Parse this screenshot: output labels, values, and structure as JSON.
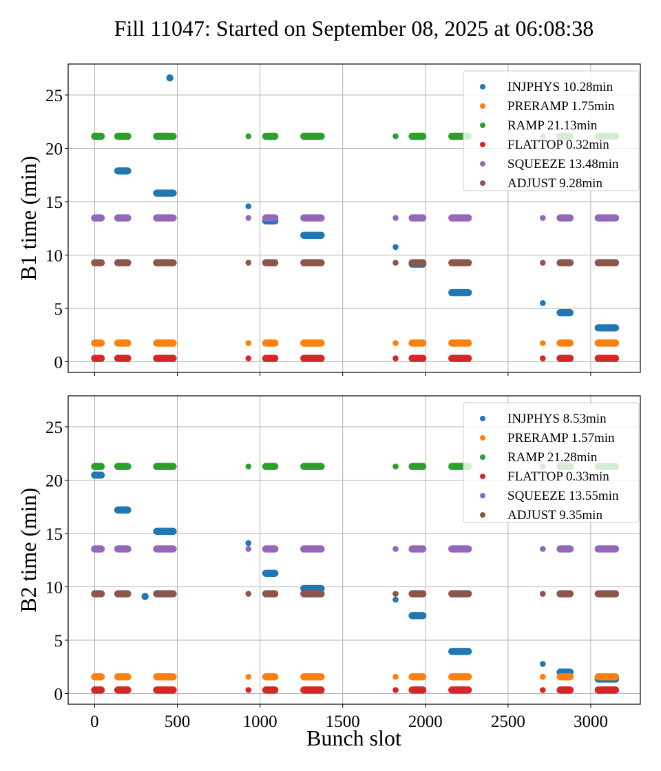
{
  "chart_data": {
    "type": "scatter",
    "title": "Fill 11047: Started on September 08, 2025 at 06:08:38",
    "xlabel": "Bunch slot",
    "xlim": [
      -160,
      3300
    ],
    "xticks": [
      0,
      500,
      1000,
      1500,
      2000,
      2500,
      3000
    ],
    "grid": true,
    "bunch_groups": [
      {
        "id": "A",
        "slots": [
          0,
          40
        ]
      },
      {
        "id": "B",
        "slots": [
          140,
          200
        ]
      },
      {
        "id": "C",
        "slots": [
          375,
          475
        ]
      },
      {
        "id": "D",
        "slots": [
          930,
          930
        ]
      },
      {
        "id": "E",
        "slots": [
          1035,
          1090
        ]
      },
      {
        "id": "F",
        "slots": [
          1265,
          1370
        ]
      },
      {
        "id": "G",
        "slots": [
          1820,
          1820
        ]
      },
      {
        "id": "H",
        "slots": [
          1920,
          1985
        ]
      },
      {
        "id": "I",
        "slots": [
          2160,
          2260
        ]
      },
      {
        "id": "J",
        "slots": [
          2710,
          2710
        ]
      },
      {
        "id": "K",
        "slots": [
          2815,
          2875
        ]
      },
      {
        "id": "L",
        "slots": [
          3045,
          3150
        ]
      }
    ],
    "panels": [
      {
        "name": "B1",
        "ylabel": "B1 time (min)",
        "ylim": [
          -1.0,
          27.9
        ],
        "yticks": [
          0,
          5,
          10,
          15,
          20,
          25
        ],
        "legend_position": "top-right",
        "series": [
          {
            "name": "INJPHYS",
            "legend": "INJPHYS 10.28min",
            "color": "#1f77b4",
            "points": [
              {
                "group": "B",
                "y": 17.88
              },
              {
                "group": "C",
                "y": 15.8
              },
              {
                "slot": 455,
                "y": 26.6
              },
              {
                "group": "D",
                "y": 14.57
              },
              {
                "group": "E",
                "y": 13.2
              },
              {
                "group": "F",
                "y": 11.85
              },
              {
                "group": "G",
                "y": 10.75
              },
              {
                "group": "H",
                "y": 9.15
              },
              {
                "group": "I",
                "y": 6.48
              },
              {
                "group": "J",
                "y": 5.5
              },
              {
                "group": "K",
                "y": 4.6
              },
              {
                "group": "L",
                "y": 3.17
              }
            ]
          },
          {
            "name": "PRERAMP",
            "legend": "PRERAMP 1.75min",
            "color": "#ff7f0e",
            "value_all_groups": 1.75
          },
          {
            "name": "RAMP",
            "legend": "RAMP 21.13min",
            "color": "#2ca02c",
            "value_all_groups": 21.13
          },
          {
            "name": "FLATTOP",
            "legend": "FLATTOP 0.32min",
            "color": "#d62728",
            "value_all_groups": 0.32
          },
          {
            "name": "SQUEEZE",
            "legend": "SQUEEZE 13.48min",
            "color": "#9467bd",
            "value_all_groups": 13.48
          },
          {
            "name": "ADJUST",
            "legend": "ADJUST 9.28min",
            "color": "#8c564b",
            "value_all_groups": 9.28
          }
        ]
      },
      {
        "name": "B2",
        "ylabel": "B2 time (min)",
        "ylim": [
          -1.0,
          27.9
        ],
        "yticks": [
          0,
          5,
          10,
          15,
          20,
          25
        ],
        "legend_position": "top-right",
        "series": [
          {
            "name": "INJPHYS",
            "legend": "INJPHYS 8.53min",
            "color": "#1f77b4",
            "points": [
              {
                "group": "A",
                "y": 20.47
              },
              {
                "group": "B",
                "y": 17.2
              },
              {
                "group": "C",
                "y": 15.2
              },
              {
                "slot": 305,
                "y": 9.1
              },
              {
                "group": "D",
                "y": 14.1
              },
              {
                "group": "E",
                "y": 11.27
              },
              {
                "group": "F",
                "y": 9.84
              },
              {
                "group": "G",
                "y": 8.8
              },
              {
                "group": "H",
                "y": 7.3
              },
              {
                "group": "I",
                "y": 3.95
              },
              {
                "group": "J",
                "y": 2.78
              },
              {
                "group": "K",
                "y": 2.0
              },
              {
                "group": "L",
                "y": 1.36
              }
            ]
          },
          {
            "name": "PRERAMP",
            "legend": "PRERAMP 1.57min",
            "color": "#ff7f0e",
            "value_all_groups": 1.57
          },
          {
            "name": "RAMP",
            "legend": "RAMP 21.28min",
            "color": "#2ca02c",
            "value_all_groups": 21.28
          },
          {
            "name": "FLATTOP",
            "legend": "FLATTOP 0.33min",
            "color": "#d62728",
            "value_all_groups": 0.33
          },
          {
            "name": "SQUEEZE",
            "legend": "SQUEEZE 13.55min",
            "color": "#9467bd",
            "value_all_groups": 13.55
          },
          {
            "name": "ADJUST",
            "legend": "ADJUST 9.35min",
            "color": "#8c564b",
            "value_all_groups": 9.35
          }
        ]
      }
    ]
  }
}
